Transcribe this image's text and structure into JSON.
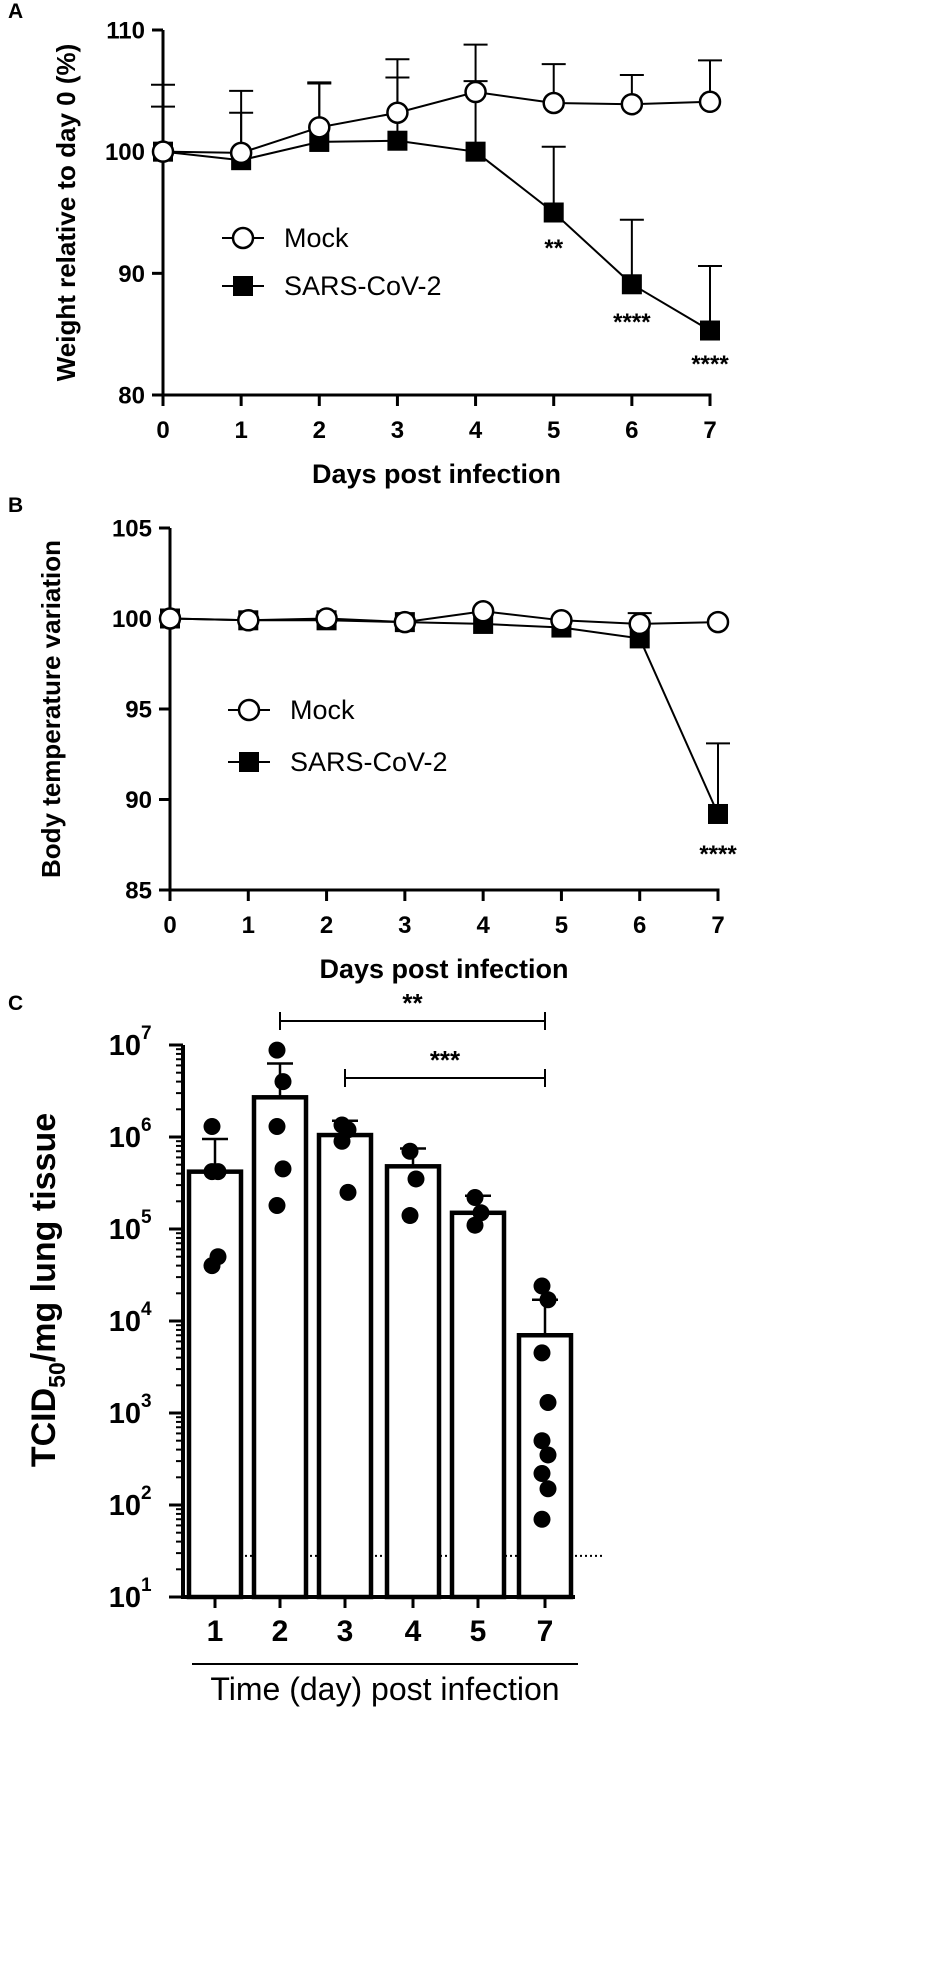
{
  "panels": [
    {
      "letter": "A"
    },
    {
      "letter": "B"
    },
    {
      "letter": "C"
    }
  ],
  "chart_data": [
    {
      "type": "line",
      "panel": "A",
      "xlabel": "Days post infection",
      "ylabel": "Weight relative to day 0 (%)",
      "xlim": [
        0,
        7
      ],
      "ylim": [
        80,
        110
      ],
      "x_ticks": [
        "0",
        "1",
        "2",
        "3",
        "4",
        "5",
        "6",
        "7"
      ],
      "y_ticks": [
        "80",
        "90",
        "100",
        "110"
      ],
      "legend": "center-left",
      "grid": false,
      "x": [
        0,
        1,
        2,
        3,
        4,
        5,
        6,
        7
      ],
      "series": [
        {
          "name": "Mock",
          "marker": "open-circle",
          "values": [
            100,
            99.9,
            102,
            103.2,
            104.9,
            104,
            103.9,
            104.1
          ],
          "error_upper": [
            105.5,
            105,
            105.7,
            107.6,
            108.8,
            107.2,
            106.3,
            107.5
          ]
        },
        {
          "name": "SARS-CoV-2",
          "marker": "filled-square",
          "values": [
            100,
            99.3,
            100.8,
            100.9,
            100,
            95,
            89.1,
            85.3
          ],
          "error_upper": [
            103.7,
            103.2,
            105.6,
            106.1,
            105.8,
            100.4,
            94.4,
            90.6
          ]
        }
      ],
      "annotations": [
        {
          "x": 5,
          "text": "**"
        },
        {
          "x": 6,
          "text": "****"
        },
        {
          "x": 7,
          "text": "****"
        }
      ]
    },
    {
      "type": "line",
      "panel": "B",
      "xlabel": "Days post infection",
      "ylabel": "Body temperature variation",
      "xlim": [
        0,
        7
      ],
      "ylim": [
        85,
        105
      ],
      "x_ticks": [
        "0",
        "1",
        "2",
        "3",
        "4",
        "5",
        "6",
        "7"
      ],
      "y_ticks": [
        "85",
        "90",
        "95",
        "100",
        "105"
      ],
      "legend": "center-left",
      "grid": false,
      "x": [
        0,
        1,
        2,
        3,
        4,
        5,
        6,
        7
      ],
      "series": [
        {
          "name": "Mock",
          "marker": "open-circle",
          "values": [
            100,
            99.9,
            100,
            99.8,
            100.4,
            99.9,
            99.7,
            99.8
          ],
          "error_upper": [
            null,
            null,
            null,
            null,
            null,
            null,
            100.3,
            null
          ]
        },
        {
          "name": "SARS-CoV-2",
          "marker": "filled-square",
          "values": [
            100,
            99.9,
            99.9,
            99.8,
            99.7,
            99.5,
            98.9,
            89.2
          ],
          "error_upper": [
            null,
            null,
            null,
            null,
            null,
            null,
            null,
            93.1
          ]
        }
      ],
      "annotations": [
        {
          "x": 7,
          "text": "****"
        }
      ]
    },
    {
      "type": "bar",
      "panel": "C",
      "xlabel": "Time (day) post infection",
      "ylabel_main": "TCID",
      "ylabel_sub": "50",
      "ylabel_rest": "/mg lung tissue",
      "y_scale": "log10",
      "ylim": [
        10,
        10000000
      ],
      "y_tick_base": "10",
      "y_tick_exps": [
        "1",
        "2",
        "3",
        "4",
        "5",
        "6",
        "7"
      ],
      "categories": [
        "1",
        "2",
        "3",
        "4",
        "5",
        "7"
      ],
      "values": [
        420000,
        2700000,
        1050000,
        480000,
        150000,
        7000
      ],
      "error_upper": [
        950000,
        6300000,
        1500000,
        750000,
        230000,
        17000
      ],
      "points": [
        [
          1300000,
          420000,
          420000,
          50000,
          40000
        ],
        [
          8800000,
          4000000,
          1300000,
          450000,
          180000
        ],
        [
          1350000,
          1200000,
          900000,
          250000
        ],
        [
          700000,
          350000,
          140000
        ],
        [
          220000,
          150000,
          110000
        ],
        [
          24000,
          17000,
          4500,
          1300,
          500,
          350,
          220,
          150,
          70
        ]
      ],
      "detection_limit": 28,
      "brackets": [
        {
          "from": "2",
          "to": "7",
          "text": "**"
        },
        {
          "from": "3",
          "to": "7",
          "text": "***"
        }
      ]
    }
  ]
}
